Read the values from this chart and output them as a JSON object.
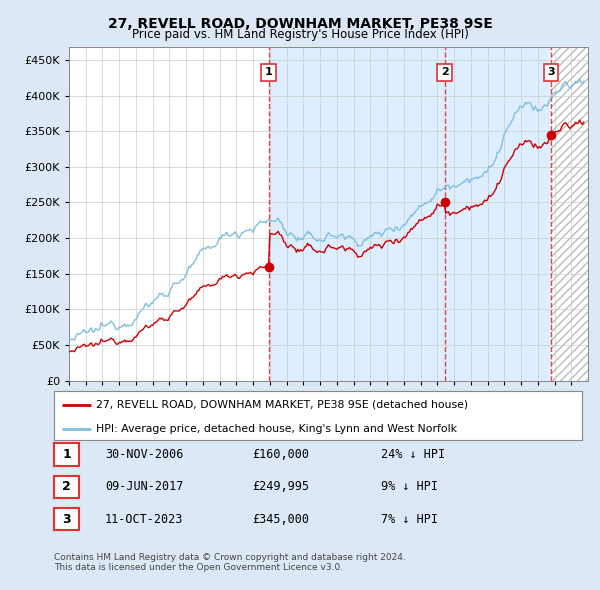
{
  "title": "27, REVELL ROAD, DOWNHAM MARKET, PE38 9SE",
  "subtitle": "Price paid vs. HM Land Registry's House Price Index (HPI)",
  "ytick_values": [
    0,
    50000,
    100000,
    150000,
    200000,
    250000,
    300000,
    350000,
    400000,
    450000
  ],
  "ylim": [
    0,
    468000
  ],
  "xlim_start": 1995.0,
  "xlim_end": 2026.0,
  "sale_dates": [
    2006.92,
    2017.44,
    2023.78
  ],
  "sale_prices": [
    160000,
    249995,
    345000
  ],
  "sale_labels": [
    "1",
    "2",
    "3"
  ],
  "sale_info": [
    {
      "label": "1",
      "date": "30-NOV-2006",
      "price": "£160,000",
      "hpi": "24% ↓ HPI"
    },
    {
      "label": "2",
      "date": "09-JUN-2017",
      "price": "£249,995",
      "hpi": "9% ↓ HPI"
    },
    {
      "label": "3",
      "date": "11-OCT-2023",
      "price": "£345,000",
      "hpi": "7% ↓ HPI"
    }
  ],
  "hpi_color": "#7fbfdf",
  "price_color": "#cc0000",
  "vline_color": "#dd3333",
  "background_color": "#dce8f5",
  "plot_bg_color": "#ffffff",
  "shade_color": "#ddeeff",
  "hatch_color": "#cccccc",
  "legend_label_red": "27, REVELL ROAD, DOWNHAM MARKET, PE38 9SE (detached house)",
  "legend_label_blue": "HPI: Average price, detached house, King's Lynn and West Norfolk",
  "footer1": "Contains HM Land Registry data © Crown copyright and database right 2024.",
  "footer2": "This data is licensed under the Open Government Licence v3.0.",
  "hpi_anchors_x": [
    1995,
    1996,
    1997,
    1998,
    1999,
    2000,
    2001,
    2002,
    2003,
    2004,
    2005,
    2006,
    2007,
    2007.5,
    2008,
    2009,
    2010,
    2011,
    2012,
    2013,
    2014,
    2015,
    2016,
    2017,
    2018,
    2019,
    2020,
    2020.5,
    2021,
    2021.5,
    2022,
    2022.5,
    2023,
    2023.5,
    2024,
    2024.5,
    2025,
    2025.5
  ],
  "hpi_anchors_y": [
    57000,
    62000,
    72000,
    82000,
    95000,
    110000,
    130000,
    150000,
    175000,
    198000,
    210000,
    218000,
    222000,
    225000,
    210000,
    195000,
    200000,
    205000,
    198000,
    200000,
    210000,
    225000,
    245000,
    268000,
    278000,
    290000,
    290000,
    310000,
    345000,
    365000,
    375000,
    390000,
    380000,
    385000,
    400000,
    415000,
    410000,
    420000
  ]
}
